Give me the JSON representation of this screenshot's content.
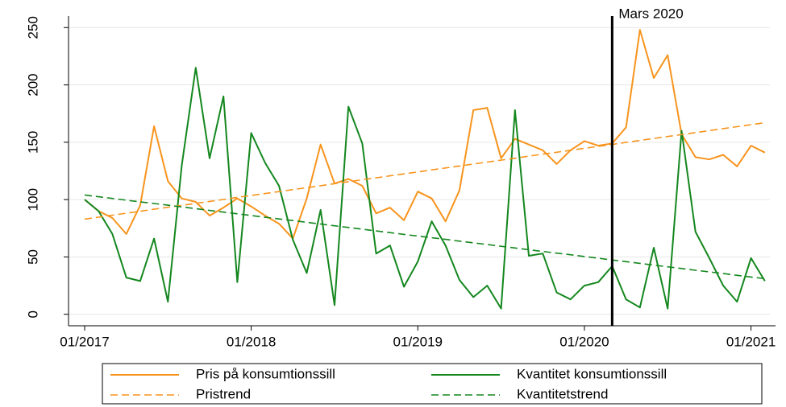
{
  "chart_data": {
    "type": "line",
    "x": [
      "01/2017",
      "02/2017",
      "03/2017",
      "04/2017",
      "05/2017",
      "06/2017",
      "07/2017",
      "08/2017",
      "09/2017",
      "10/2017",
      "11/2017",
      "12/2017",
      "01/2018",
      "02/2018",
      "03/2018",
      "04/2018",
      "05/2018",
      "06/2018",
      "07/2018",
      "08/2018",
      "09/2018",
      "10/2018",
      "11/2018",
      "12/2018",
      "01/2019",
      "02/2019",
      "03/2019",
      "04/2019",
      "05/2019",
      "06/2019",
      "07/2019",
      "08/2019",
      "09/2019",
      "10/2019",
      "11/2019",
      "12/2019",
      "01/2020",
      "02/2020",
      "03/2020",
      "04/2020",
      "05/2020",
      "06/2020",
      "07/2020",
      "08/2020",
      "09/2020",
      "10/2020",
      "11/2020",
      "12/2020",
      "01/2021",
      "02/2021"
    ],
    "series": [
      {
        "name": "Pris på konsumtionssill",
        "color": "#f7941d",
        "dash": false,
        "values": [
          100,
          90,
          84,
          70,
          95,
          164,
          116,
          101,
          98,
          86,
          93,
          101,
          94,
          86,
          79,
          66,
          101,
          148,
          114,
          118,
          112,
          88,
          93,
          82,
          107,
          101,
          81,
          108,
          178,
          180,
          136,
          153,
          148,
          143,
          131,
          143,
          151,
          147,
          149,
          163,
          248,
          206,
          226,
          157,
          137,
          135,
          139,
          129,
          147,
          141
        ]
      },
      {
        "name": "Kvantitet konsumtionssill",
        "color": "#14871e",
        "dash": false,
        "values": [
          100,
          90,
          70,
          32,
          29,
          66,
          11,
          130,
          215,
          136,
          190,
          28,
          158,
          132,
          112,
          65,
          36,
          91,
          8,
          181,
          149,
          53,
          60,
          24,
          46,
          81,
          60,
          30,
          15,
          25,
          5,
          178,
          51,
          53,
          19,
          13,
          25,
          28,
          42,
          13,
          6,
          58,
          5,
          160,
          72,
          49,
          25,
          11,
          49,
          29
        ]
      },
      {
        "name": "Pristrend",
        "color": "#f7941d",
        "dash": true,
        "values": [
          83.0,
          84.7,
          86.4,
          88.1,
          89.9,
          91.6,
          93.3,
          95.0,
          96.7,
          98.4,
          100.1,
          101.9,
          103.6,
          105.3,
          107.0,
          108.7,
          110.4,
          112.1,
          113.9,
          115.6,
          117.3,
          119.0,
          120.7,
          122.4,
          124.1,
          125.9,
          127.6,
          129.3,
          131.0,
          132.7,
          134.4,
          136.1,
          137.9,
          139.6,
          141.3,
          143.0,
          144.7,
          146.4,
          148.1,
          149.9,
          151.6,
          153.3,
          155.0,
          156.7,
          158.4,
          160.1,
          161.9,
          163.6,
          165.3,
          167.0
        ]
      },
      {
        "name": "Kvantitetstrend",
        "color": "#14871e",
        "dash": true,
        "values": [
          104.0,
          102.5,
          101.0,
          99.5,
          98.0,
          96.6,
          95.1,
          93.6,
          92.1,
          90.6,
          89.1,
          87.6,
          86.1,
          84.6,
          83.1,
          81.7,
          80.2,
          78.7,
          77.2,
          75.7,
          74.2,
          72.7,
          71.2,
          69.7,
          68.2,
          66.8,
          65.3,
          63.8,
          62.3,
          60.8,
          59.3,
          57.8,
          56.3,
          54.8,
          53.3,
          51.9,
          50.4,
          48.9,
          47.4,
          45.9,
          44.4,
          42.9,
          41.4,
          39.9,
          38.4,
          37.0,
          35.5,
          34.0,
          32.5,
          31.0
        ]
      }
    ],
    "xticks": [
      "01/2017",
      "01/2018",
      "01/2019",
      "01/2020",
      "01/2021"
    ],
    "ylim": [
      -10,
      260
    ],
    "yticks": [
      0,
      50,
      100,
      150,
      200,
      250
    ],
    "grid": true,
    "vline": {
      "x": "03/2020",
      "label": "Mars 2020"
    },
    "legend": "bottom"
  }
}
